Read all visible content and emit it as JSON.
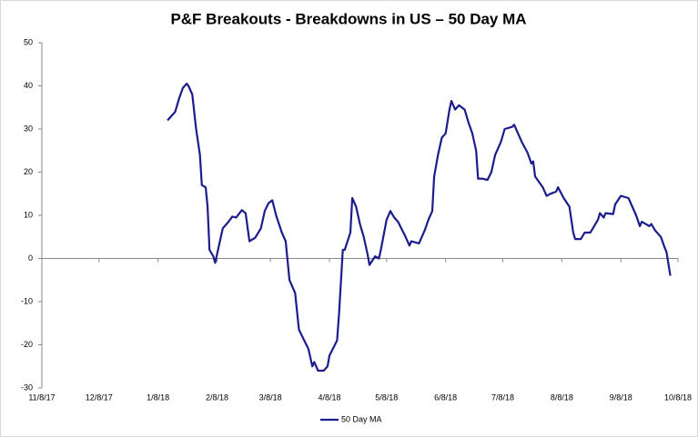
{
  "chart_data": {
    "type": "line",
    "title": "P&F Breakouts - Breakdowns in US – 50 Day MA",
    "x": [
      "1/13/18",
      "1/17/18",
      "1/19/18",
      "1/21/18",
      "1/23/18",
      "1/24/18",
      "1/26/18",
      "1/28/18",
      "1/30/18",
      "1/31/18",
      "2/2/18",
      "2/3/18",
      "2/4/18",
      "2/6/18",
      "2/7/18",
      "2/9/18",
      "2/11/18",
      "2/14/18",
      "2/16/18",
      "2/18/18",
      "2/21/18",
      "2/23/18",
      "2/25/18",
      "2/28/18",
      "3/3/18",
      "3/5/18",
      "3/7/18",
      "3/9/18",
      "3/11/18",
      "3/14/18",
      "3/16/18",
      "3/18/18",
      "3/21/18",
      "3/23/18",
      "3/28/18",
      "3/30/18",
      "3/31/18",
      "4/2/18",
      "4/5/18",
      "4/7/18",
      "4/8/18",
      "4/12/18",
      "4/13/18",
      "4/15/18",
      "4/16/18",
      "4/19/18",
      "4/20/18",
      "4/22/18",
      "4/24/18",
      "4/26/18",
      "4/28/18",
      "4/29/18",
      "5/2/18",
      "5/4/18",
      "5/5/18",
      "5/8/18",
      "5/10/18",
      "5/12/18",
      "5/14/18",
      "5/18/18",
      "5/20/18",
      "5/21/18",
      "5/25/18",
      "5/28/18",
      "5/30/18",
      "6/1/18",
      "6/2/18",
      "6/4/18",
      "6/6/18",
      "6/8/18",
      "6/10/18",
      "6/11/18",
      "6/13/18",
      "6/15/18",
      "6/18/18",
      "6/20/18",
      "6/22/18",
      "6/24/18",
      "6/25/18",
      "6/27/18",
      "6/30/18",
      "7/2/18",
      "7/4/18",
      "7/7/18",
      "7/9/18",
      "7/13/18",
      "7/14/18",
      "7/16/18",
      "7/18/18",
      "7/21/18",
      "7/23/18",
      "7/24/18",
      "7/25/18",
      "7/29/18",
      "7/31/18",
      "8/2/18",
      "8/5/18",
      "8/6/18",
      "8/9/18",
      "8/12/18",
      "8/14/18",
      "8/15/18",
      "8/18/18",
      "8/20/18",
      "8/23/18",
      "8/27/18",
      "8/28/18",
      "8/30/18",
      "8/31/18",
      "9/4/18",
      "9/5/18",
      "9/8/18",
      "9/12/18",
      "9/14/18",
      "9/16/18",
      "9/18/18",
      "9/19/18",
      "9/23/18",
      "9/24/18",
      "9/26/18",
      "9/29/18",
      "10/1/18",
      "10/2/18",
      "10/4/18"
    ],
    "series": [
      {
        "name": "50 Day MA",
        "color": "#1c1c8c",
        "values": [
          32,
          34,
          37,
          39.5,
          40.5,
          40,
          38,
          30,
          24,
          17,
          16.5,
          12,
          2,
          0.5,
          -1,
          3,
          7,
          8.5,
          9.7,
          9.5,
          11.2,
          10.5,
          4,
          4.8,
          7,
          11,
          12.8,
          13.5,
          10,
          6,
          4,
          -5,
          -8,
          -16.5,
          -21,
          -25,
          -24,
          -26,
          -26,
          -25,
          -22.5,
          -19,
          -13,
          2,
          2,
          6,
          14,
          12,
          8,
          5,
          1,
          -1.5,
          0.5,
          0,
          2,
          9,
          11,
          9.5,
          8.5,
          5,
          3,
          4,
          3.5,
          6.5,
          9,
          11,
          19,
          24,
          28,
          29,
          34.5,
          36.5,
          34.5,
          35.5,
          34.5,
          31.5,
          29,
          25,
          18.5,
          18.5,
          18.2,
          20,
          24,
          27,
          30,
          30.5,
          31,
          29,
          27,
          24.5,
          22,
          22.5,
          19,
          16.5,
          14.5,
          15,
          15.5,
          16.5,
          14,
          12,
          6,
          4.5,
          4.5,
          6,
          6,
          9,
          10.5,
          9.5,
          10.5,
          10.3,
          12.5,
          14.5,
          14,
          12,
          10,
          7.5,
          8.5,
          7.5,
          8,
          6.5,
          5,
          2.5,
          1.5,
          -4
        ]
      }
    ],
    "xlim": [
      "11/8/17",
      "10/8/18"
    ],
    "xticks": [
      "11/8/17",
      "12/8/17",
      "1/8/18",
      "2/8/18",
      "3/8/18",
      "4/8/18",
      "5/8/18",
      "6/8/18",
      "7/8/18",
      "8/8/18",
      "9/8/18",
      "10/8/18"
    ],
    "ylim": [
      -30,
      50
    ],
    "yticks": [
      -30,
      -20,
      -10,
      0,
      10,
      20,
      30,
      40,
      50
    ],
    "legend": "bottom"
  }
}
